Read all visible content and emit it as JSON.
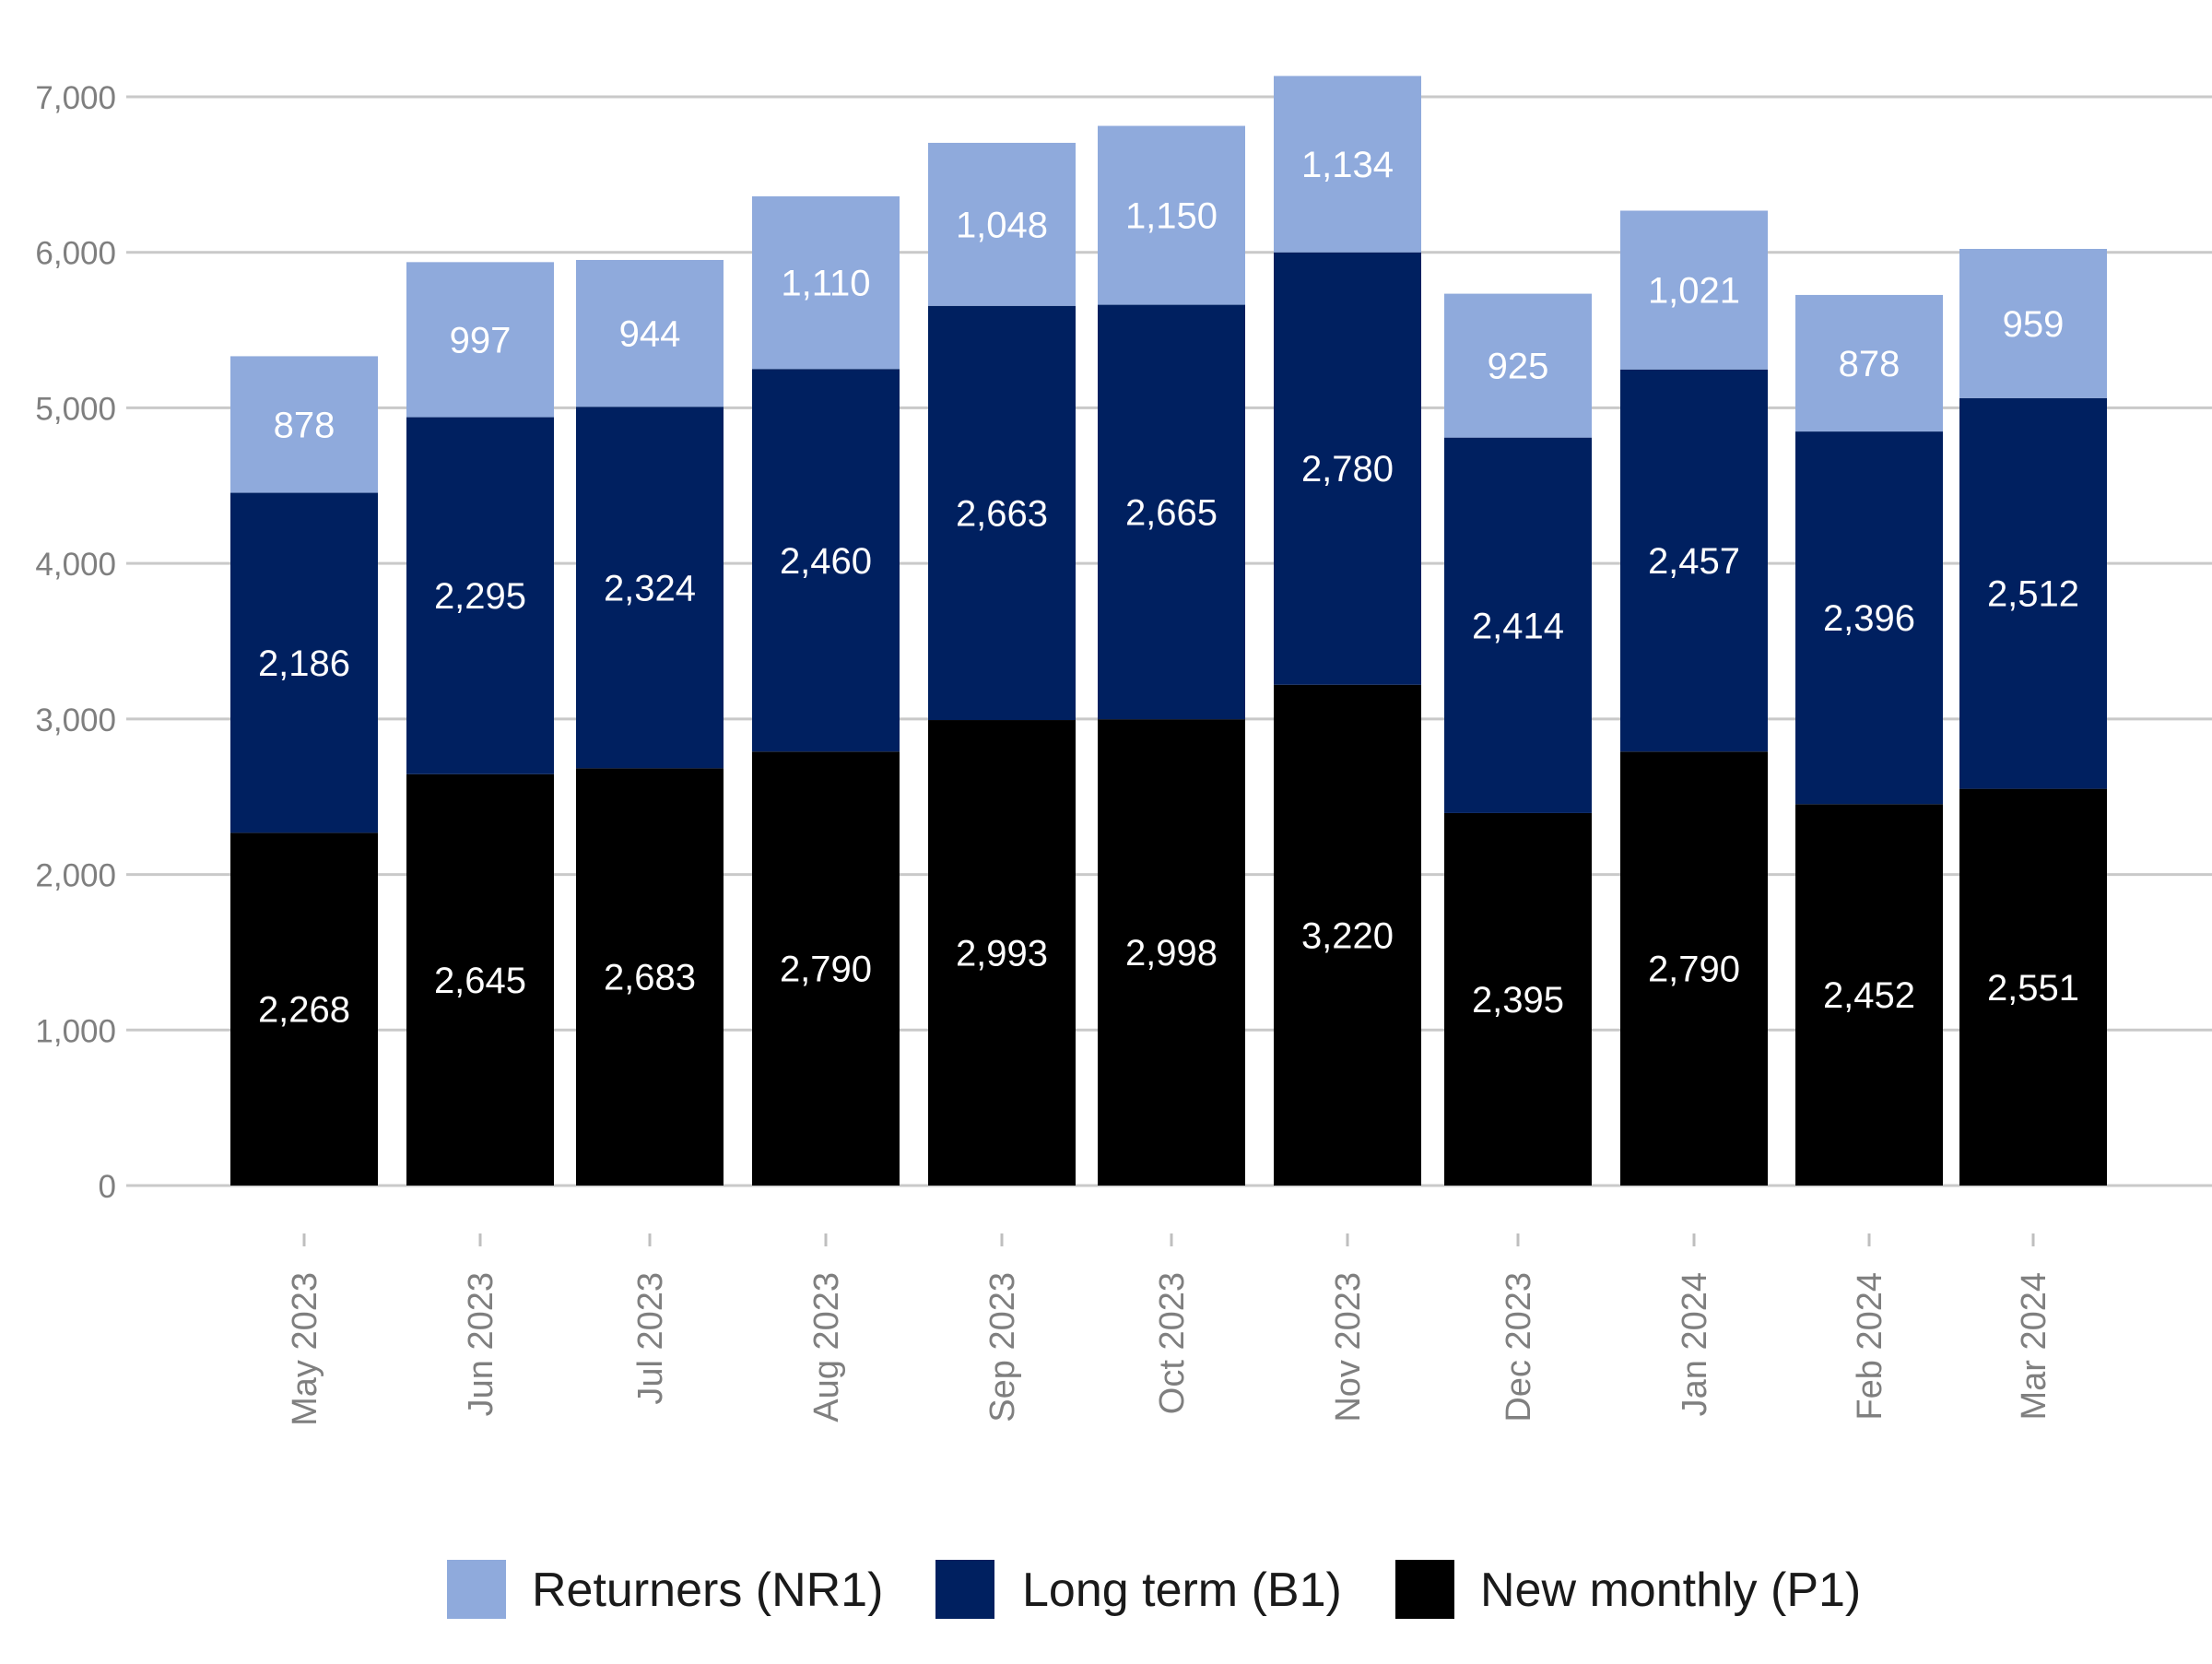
{
  "chart_data": {
    "type": "bar",
    "stacked": true,
    "categories": [
      "May 2023",
      "Jun 2023",
      "Jul 2023",
      "Aug 2023",
      "Sep 2023",
      "Oct 2023",
      "Nov 2023",
      "Dec 2023",
      "Jan 2024",
      "Feb 2024",
      "Mar 2024"
    ],
    "series": [
      {
        "name": "New monthly (P1)",
        "color": "#000000",
        "values": [
          2268,
          2645,
          2683,
          2790,
          2993,
          2998,
          3220,
          2395,
          2790,
          2452,
          2551
        ]
      },
      {
        "name": "Long term (B1)",
        "color": "#002060",
        "values": [
          2186,
          2295,
          2324,
          2460,
          2663,
          2665,
          2780,
          2414,
          2457,
          2396,
          2512
        ]
      },
      {
        "name": "Returners (NR1)",
        "color": "#8faadc",
        "values": [
          878,
          997,
          944,
          1110,
          1048,
          1150,
          1134,
          925,
          1021,
          878,
          959
        ]
      }
    ],
    "legend_order": [
      "Returners (NR1)",
      "Long term (B1)",
      "New monthly (P1)"
    ],
    "legend_position": "bottom",
    "ylim": [
      0,
      7000
    ],
    "yticks": [
      0,
      1000,
      2000,
      3000,
      4000,
      5000,
      6000,
      7000
    ],
    "ytick_labels": [
      "0",
      "1,000",
      "2,000",
      "3,000",
      "4,000",
      "5,000",
      "6,000",
      "7,000"
    ],
    "grid": "horizontal",
    "xlabel": "",
    "ylabel": "",
    "title": ""
  }
}
